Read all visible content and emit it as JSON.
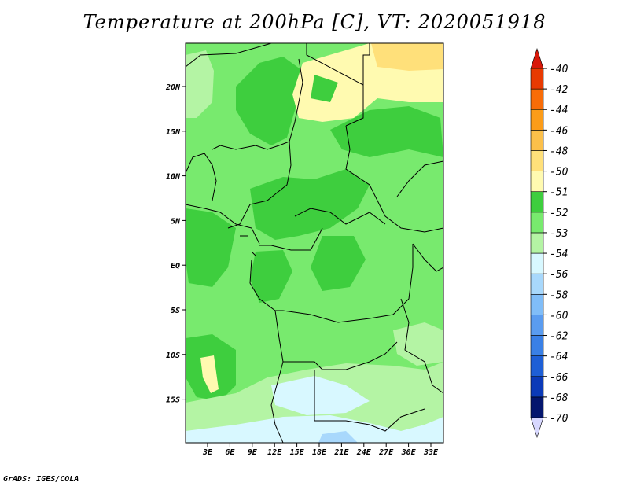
{
  "title": "Temperature at 200hPa [C], VT: 2020051918",
  "credit": "GrADS: IGES/COLA",
  "map": {
    "lat_labels": [
      "20N",
      "15N",
      "10N",
      "5N",
      "EQ",
      "5S",
      "10S",
      "15S"
    ],
    "lon_labels": [
      "3E",
      "6E",
      "9E",
      "12E",
      "15E",
      "18E",
      "21E",
      "24E",
      "27E",
      "30E",
      "33E"
    ]
  },
  "colorbar": {
    "colors": [
      "#d8d8ff",
      "#04166e",
      "#0b3ab8",
      "#1e5fd6",
      "#3a80e6",
      "#5a9cf0",
      "#80bdf8",
      "#a8d8fc",
      "#d8f8ff",
      "#b4f4a4",
      "#78ea6e",
      "#3ece3e",
      "#fffab0",
      "#ffe07a",
      "#fcc04a",
      "#fc9c18",
      "#f86c08",
      "#e83a02",
      "#d8180a"
    ],
    "labels": [
      "-70",
      "-68",
      "-66",
      "-64",
      "-62",
      "-60",
      "-58",
      "-56",
      "-54",
      "-53",
      "-52",
      "-51",
      "-50",
      "-48",
      "-46",
      "-44",
      "-42",
      "-40"
    ]
  }
}
